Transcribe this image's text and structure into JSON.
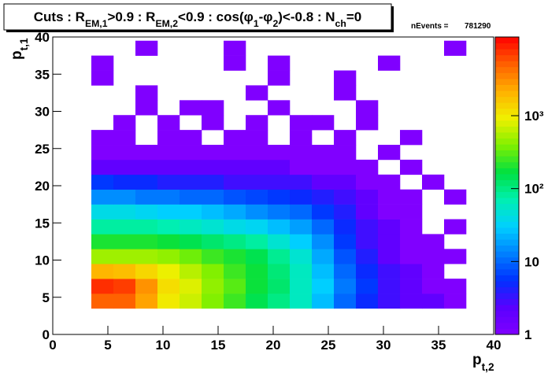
{
  "chart_data": {
    "type": "heatmap",
    "title": [
      {
        "text": "Cuts : R"
      },
      {
        "text": "EM,1",
        "sub": true
      },
      {
        "text": ">0.9 : R"
      },
      {
        "text": "EM,2",
        "sub": true
      },
      {
        "text": "<0.9 : cos(φ"
      },
      {
        "text": "1",
        "sub": true
      },
      {
        "text": "-φ"
      },
      {
        "text": "2",
        "sub": true
      },
      {
        "text": ")<-0.8 : N"
      },
      {
        "text": "ch",
        "sub": true
      },
      {
        "text": "=0"
      }
    ],
    "stats_label": "nEvents =",
    "stats_value": 781290,
    "x_label": [
      {
        "text": "p"
      },
      {
        "text": "t,2",
        "sub": true
      }
    ],
    "y_label": [
      {
        "text": "p"
      },
      {
        "text": "t,1",
        "sub": true
      }
    ],
    "xlim": [
      0,
      40
    ],
    "ylim": [
      0,
      40
    ],
    "xticks": [
      0,
      5,
      10,
      15,
      20,
      25,
      30,
      35,
      40
    ],
    "yticks": [
      0,
      5,
      10,
      15,
      20,
      25,
      30,
      35,
      40
    ],
    "zlim": [
      1,
      12000
    ],
    "zlog": true,
    "zticks": [
      1,
      10,
      {
        "value": 100,
        "label": "10²"
      },
      {
        "value": 1000,
        "label": "10³"
      }
    ],
    "palette": [
      "#8000ff",
      "#5a00ff",
      "#0030ff",
      "#0080ff",
      "#00d0ff",
      "#00f0b0",
      "#00e040",
      "#80f000",
      "#f0f000",
      "#ffb000",
      "#ff6000",
      "#ff0000"
    ],
    "xbins": [
      3.5,
      5.5,
      7.5,
      9.5,
      11.5,
      13.5,
      15.5,
      17.5,
      19.5,
      21.5,
      23.5,
      25.5,
      27.5,
      29.5,
      31.5,
      33.5,
      35.5,
      37.5,
      39.5
    ],
    "ybins": [
      3.5,
      5.5,
      7.5,
      9.5,
      11.5,
      13.5,
      15.5,
      17.5,
      19.5,
      21.5,
      23.5,
      25.5,
      27.5,
      29.5,
      31.5,
      33.5,
      35.5,
      37.5,
      39.5
    ],
    "z": [
      [
        5000,
        5000,
        2500,
        1000,
        700,
        400,
        250,
        150,
        100,
        60,
        25,
        10,
        5,
        3,
        2,
        2,
        1,
        null
      ],
      [
        8000,
        7000,
        3000,
        1200,
        800,
        450,
        300,
        180,
        120,
        60,
        30,
        12,
        6,
        3,
        2,
        1,
        1,
        null
      ],
      [
        2000,
        1800,
        1300,
        900,
        600,
        400,
        250,
        180,
        110,
        60,
        25,
        10,
        5,
        3,
        2,
        1,
        null,
        null
      ],
      [
        500,
        500,
        500,
        450,
        350,
        250,
        200,
        150,
        90,
        50,
        20,
        8,
        4,
        2,
        1,
        1,
        1,
        null
      ],
      [
        200,
        200,
        200,
        180,
        150,
        120,
        100,
        80,
        50,
        30,
        15,
        6,
        3,
        2,
        1,
        1,
        null,
        null
      ],
      [
        80,
        80,
        80,
        70,
        60,
        50,
        40,
        35,
        25,
        18,
        10,
        5,
        3,
        2,
        1,
        null,
        1,
        null
      ],
      [
        40,
        40,
        35,
        30,
        30,
        25,
        20,
        15,
        12,
        10,
        6,
        4,
        2,
        1,
        1,
        null,
        null,
        null
      ],
      [
        15,
        15,
        12,
        12,
        10,
        10,
        8,
        7,
        6,
        5,
        4,
        3,
        2,
        1,
        1,
        null,
        1,
        null
      ],
      [
        6,
        5,
        5,
        4,
        4,
        4,
        3,
        3,
        3,
        3,
        2,
        2,
        1,
        1,
        null,
        1,
        null,
        null
      ],
      [
        2,
        2,
        2,
        2,
        2,
        2,
        2,
        2,
        2,
        1,
        1,
        1,
        1,
        null,
        1,
        null,
        null,
        null
      ],
      [
        1,
        1,
        1,
        1,
        1,
        1,
        1,
        1,
        1,
        1,
        1,
        1,
        null,
        1,
        null,
        null,
        null,
        null
      ],
      [
        1,
        1,
        null,
        1,
        1,
        null,
        1,
        1,
        null,
        1,
        null,
        1,
        null,
        null,
        1,
        null,
        null,
        null
      ],
      [
        null,
        1,
        null,
        1,
        null,
        1,
        null,
        1,
        null,
        1,
        1,
        null,
        1,
        null,
        null,
        null,
        null,
        null
      ],
      [
        null,
        null,
        1,
        null,
        1,
        1,
        null,
        null,
        1,
        null,
        null,
        null,
        1,
        null,
        null,
        null,
        null,
        null
      ],
      [
        null,
        null,
        1,
        null,
        null,
        null,
        null,
        1,
        null,
        null,
        null,
        1,
        null,
        null,
        null,
        null,
        null,
        null
      ],
      [
        1,
        null,
        null,
        null,
        null,
        null,
        null,
        null,
        1,
        null,
        null,
        1,
        null,
        null,
        null,
        null,
        null,
        null
      ],
      [
        1,
        null,
        null,
        null,
        null,
        null,
        1,
        null,
        1,
        null,
        null,
        null,
        null,
        1,
        null,
        null,
        null,
        null
      ],
      [
        null,
        null,
        1,
        null,
        null,
        null,
        1,
        null,
        null,
        null,
        null,
        null,
        null,
        null,
        null,
        null,
        1,
        null
      ]
    ]
  }
}
